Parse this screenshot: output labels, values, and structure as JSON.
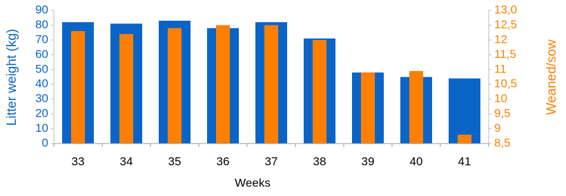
{
  "chart_data": {
    "type": "bar",
    "x_label": "Weeks",
    "y_label": "Litter weight (kg)",
    "y2_label": "Weaned/sow",
    "categories": [
      "33",
      "34",
      "35",
      "36",
      "37",
      "38",
      "39",
      "40",
      "41"
    ],
    "series": [
      {
        "name": "Litter weight (kg)",
        "color": "#0a64c8",
        "values": [
          82,
          81,
          83,
          78,
          82,
          71,
          48,
          45,
          44
        ]
      },
      {
        "name": "Weaned/sow",
        "color": "#ff8000",
        "axis": "y2",
        "values": [
          12.3,
          12.2,
          12.4,
          12.5,
          12.5,
          12.0,
          10.9,
          10.95,
          8.8
        ]
      }
    ],
    "ylim": [
      0,
      90
    ],
    "yticks": [
      0,
      10,
      20,
      30,
      40,
      50,
      60,
      70,
      80,
      90
    ],
    "y2lim": [
      8.5,
      13.0
    ],
    "y2ticks": [
      {
        "value": 8.5,
        "label": "8,5"
      },
      9,
      {
        "value": 9.5,
        "label": "9,5"
      },
      10,
      {
        "value": 10.5,
        "label": "10,5"
      },
      11,
      {
        "value": 11.5,
        "label": "11,5"
      },
      12,
      {
        "value": 12.5,
        "label": "12,5"
      },
      {
        "value": 13.0,
        "label": "13,0"
      }
    ],
    "grid": false
  }
}
